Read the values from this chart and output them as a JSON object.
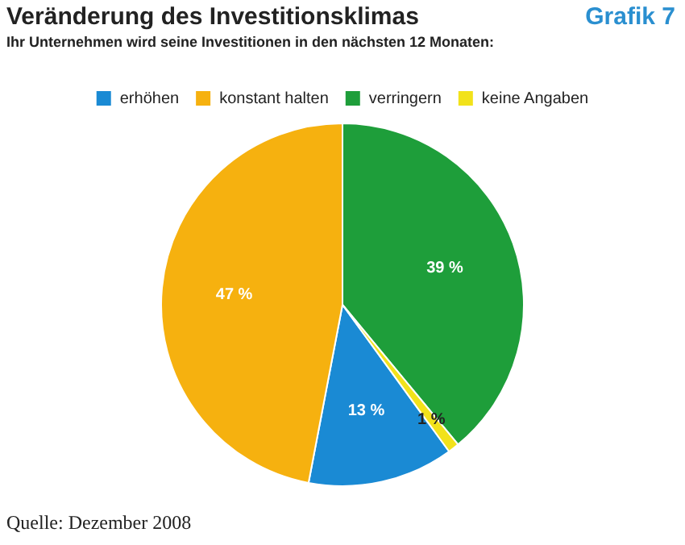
{
  "chart_data": {
    "type": "pie",
    "title": "Veränderung des Investitionsklimas",
    "subtitle": "Ihr Unternehmen wird seine Investitionen in den nächsten 12 Monaten:",
    "categories": [
      "erhöhen",
      "konstant halten",
      "verringern",
      "keine Angaben"
    ],
    "values": [
      13,
      47,
      39,
      1
    ],
    "colors": [
      "#1a8ad4",
      "#f6b10f",
      "#1e9e3a",
      "#f2e21a"
    ],
    "value_labels": [
      "13 %",
      "47 %",
      "39 %",
      "1 %"
    ],
    "legend": "top",
    "annotations": [
      "Grafik 7",
      "Quelle: Dezember 2008"
    ]
  }
}
